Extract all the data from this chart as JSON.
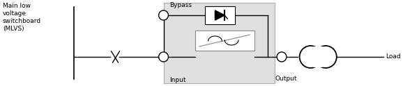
{
  "fig_width": 5.78,
  "fig_height": 1.24,
  "dpi": 100,
  "bg_color": "#ffffff",
  "gray_box_color": "#e0e0e0",
  "mlvs_text": "Main low\nvoltage\nswitchboard\n(MLVS)",
  "bypass_text": "Bypass",
  "input_text": "Input",
  "output_text": "Output",
  "load_text": "Load",
  "line_color": "#000000",
  "gray_edge_color": "#aaaaaa"
}
